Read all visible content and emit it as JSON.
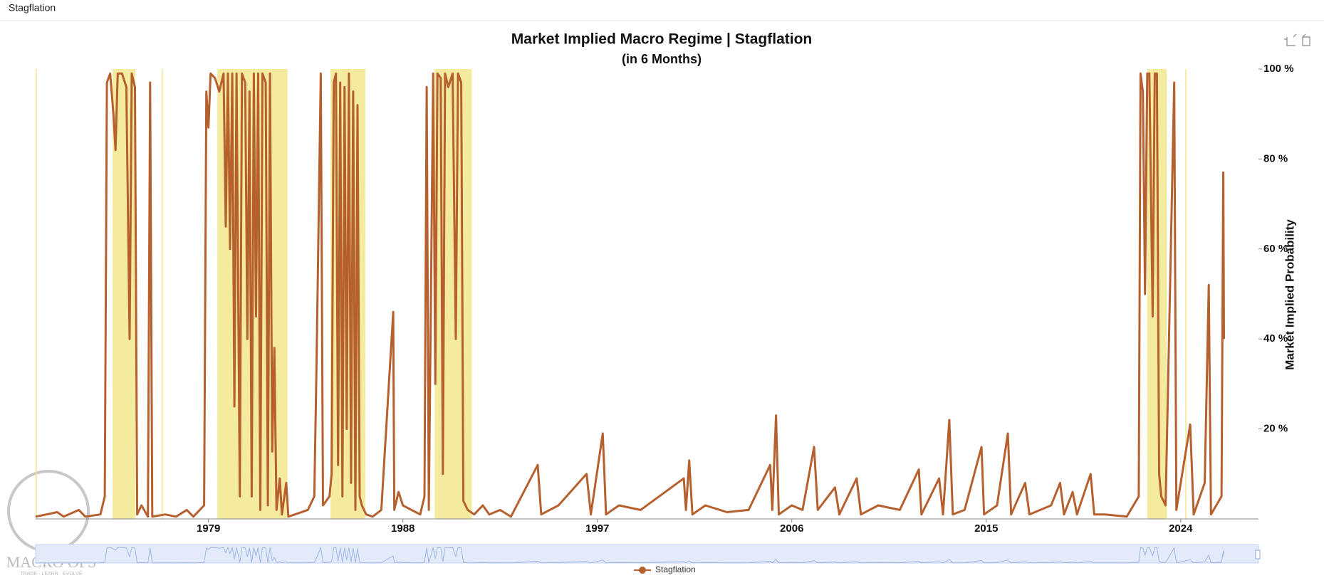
{
  "header": {
    "tab": "Stagflation"
  },
  "watermark": {
    "brand": "MACRO OPS",
    "tagline": "TRADE · LEARN · EVOLVE"
  },
  "chart_data": {
    "type": "line",
    "title": "Market Implied Macro Regime | Stagflation",
    "subtitle": "(in 6 Months)",
    "y_label": "Market Implied Probability",
    "xlim": [
      1971.0,
      2027.6
    ],
    "xticks": [
      1979,
      1988,
      1997,
      2006,
      2015,
      2024
    ],
    "ylim": [
      0,
      100
    ],
    "yticks": [
      {
        "value": 20,
        "label": "20 %"
      },
      {
        "value": 40,
        "label": "40 %"
      },
      {
        "value": 60,
        "label": "60 %"
      },
      {
        "value": 80,
        "label": "80 %"
      },
      {
        "value": 100,
        "label": "100 %"
      }
    ],
    "shaded_ranges": [
      [
        1971.0,
        1971.06
      ],
      [
        1974.56,
        1975.62
      ],
      [
        1976.83,
        1976.89
      ],
      [
        1979.41,
        1982.66
      ],
      [
        1984.65,
        1986.26
      ],
      [
        1989.47,
        1991.19
      ],
      [
        2022.45,
        2023.35
      ],
      [
        2024.21,
        2024.27
      ]
    ],
    "shade_color": "#f2e88e",
    "series": [
      {
        "name": "Stagflation",
        "color": "#b5602e",
        "x": [
          1971.0,
          1971.5,
          1972.0,
          1972.3,
          1973.0,
          1973.3,
          1974.0,
          1974.2,
          1974.3,
          1974.45,
          1974.6,
          1974.7,
          1974.8,
          1975.0,
          1975.2,
          1975.35,
          1975.45,
          1975.6,
          1975.7,
          1975.9,
          1976.2,
          1976.3,
          1976.4,
          1977.0,
          1977.5,
          1978.0,
          1978.3,
          1978.8,
          1978.9,
          1979.0,
          1979.1,
          1979.3,
          1979.5,
          1979.7,
          1979.8,
          1979.9,
          1980.0,
          1980.1,
          1980.2,
          1980.3,
          1980.45,
          1980.55,
          1980.7,
          1980.8,
          1980.9,
          1981.0,
          1981.1,
          1981.2,
          1981.3,
          1981.4,
          1981.5,
          1981.65,
          1981.75,
          1981.85,
          1981.95,
          1982.05,
          1982.15,
          1982.3,
          1982.4,
          1982.6,
          1982.7,
          1983.0,
          1983.6,
          1983.9,
          1984.0,
          1984.2,
          1984.3,
          1984.6,
          1984.7,
          1984.8,
          1984.9,
          1985.0,
          1985.1,
          1985.2,
          1985.3,
          1985.4,
          1985.5,
          1985.6,
          1985.7,
          1985.8,
          1985.9,
          1986.0,
          1986.1,
          1986.3,
          1986.6,
          1987.0,
          1987.55,
          1987.6,
          1987.8,
          1988.0,
          1988.4,
          1988.8,
          1989.0,
          1989.1,
          1989.2,
          1989.4,
          1989.5,
          1989.6,
          1989.75,
          1989.85,
          1989.95,
          1990.1,
          1990.3,
          1990.45,
          1990.55,
          1990.7,
          1990.8,
          1991.0,
          1991.3,
          1991.7,
          1992.0,
          1992.5,
          1993.0,
          1994.24,
          1994.4,
          1995.2,
          1996.5,
          1996.7,
          1997.25,
          1997.4,
          1998.0,
          1999.0,
          2001.0,
          2001.1,
          2001.25,
          2001.4,
          2002.0,
          2003.0,
          2004.0,
          2005.0,
          2005.1,
          2005.27,
          2005.4,
          2006.0,
          2006.5,
          2007.03,
          2007.2,
          2008.0,
          2008.2,
          2009.0,
          2009.2,
          2010.0,
          2011.0,
          2011.88,
          2012.0,
          2012.82,
          2013.0,
          2013.29,
          2013.45,
          2014.0,
          2014.78,
          2014.9,
          2015.5,
          2016.0,
          2016.15,
          2016.8,
          2017.0,
          2018.0,
          2018.42,
          2018.6,
          2019.0,
          2019.2,
          2019.83,
          2020.0,
          2020.5,
          2021.5,
          2022.06,
          2022.14,
          2022.25,
          2022.35,
          2022.45,
          2022.55,
          2022.7,
          2022.8,
          2022.9,
          2023.0,
          2023.1,
          2023.3,
          2023.7,
          2023.8,
          2024.44,
          2024.6,
          2025.11,
          2025.3,
          2025.4,
          2025.89,
          2025.97,
          2026.0
        ],
        "values": [
          0.5,
          1,
          1.5,
          0.5,
          2,
          0.5,
          1,
          5,
          97,
          99,
          90,
          82,
          99,
          99,
          96,
          40,
          99,
          96,
          1,
          3,
          0.5,
          97,
          0.5,
          1,
          0.5,
          2,
          0.5,
          3,
          95,
          87,
          99,
          98,
          95,
          99,
          65,
          99,
          60,
          99,
          25,
          99,
          5,
          99,
          97,
          40,
          95,
          5,
          99,
          45,
          99,
          2,
          99,
          97,
          3,
          99,
          15,
          38,
          2,
          9,
          1,
          8,
          0.5,
          1,
          2,
          5,
          34,
          99,
          3,
          5,
          10,
          97,
          99,
          12,
          97,
          5,
          96,
          20,
          99,
          8,
          95,
          2,
          92,
          5,
          3,
          1,
          0.5,
          2,
          46,
          2,
          6,
          3,
          2,
          1,
          5,
          96,
          2,
          99,
          30,
          99,
          98,
          10,
          99,
          96,
          99,
          40,
          99,
          97,
          4,
          2,
          1,
          3,
          1,
          2,
          0.5,
          12,
          1,
          3,
          10,
          1,
          19,
          1,
          3,
          2,
          9,
          2,
          13,
          1,
          3,
          1.5,
          2,
          12,
          2,
          23,
          1,
          3,
          2,
          16,
          2,
          7,
          1,
          9,
          1,
          3,
          2,
          11,
          1,
          9,
          1,
          22,
          1,
          2,
          16,
          1,
          3,
          19,
          1,
          8,
          1,
          3,
          8,
          1,
          6,
          1,
          10,
          1,
          1,
          0.5,
          5,
          99,
          95,
          50,
          99,
          99,
          45,
          99,
          99,
          10,
          5,
          3,
          97,
          2,
          21,
          1,
          8,
          52,
          1,
          5,
          77,
          40
        ]
      }
    ]
  }
}
